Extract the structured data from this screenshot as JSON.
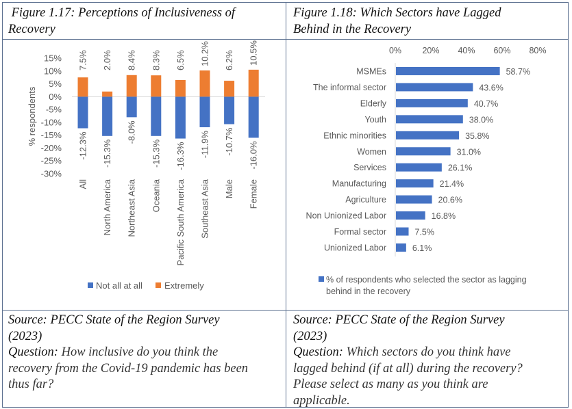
{
  "left_panel": {
    "caption": "Figure 1.17: Perceptions of Inclusiveness of Recovery",
    "caption_line1": " Figure 1.17: Perceptions of Inclusiveness of",
    "caption_line2": "Recovery",
    "source_line1": "Source: PECC State of the Region Survey",
    "source_line2": "(2023)",
    "question_label": "Question:",
    "question_text_line1": " How inclusive do you think the",
    "question_text_line2": "recovery from the Covid-19 pandemic has been",
    "question_text_line3": "thus far?"
  },
  "right_panel": {
    "caption_line1": "Figure 1.18: Which Sectors have Lagged",
    "caption_line2": "Behind in the Recovery",
    "source_line1": "Source: PECC State of the Region Survey",
    "source_line2": "(2023)",
    "question_label": "Question:",
    "question_text_line1": " Which sectors do you think have",
    "question_text_line2": "lagged behind (if at all) during the recovery?",
    "question_text_line3": "Please select as many as you think are",
    "question_text_line4": "applicable."
  },
  "colors": {
    "blue": "#4472c4",
    "orange": "#ed7d31",
    "axis": "#d9d9d9",
    "text": "#595959"
  },
  "chart_data": [
    {
      "type": "bar",
      "orientation": "vertical",
      "title": "Figure 1.17: Perceptions of Inclusiveness of Recovery",
      "xlabel": "",
      "ylabel": "% respondents",
      "categories": [
        "All",
        "North America",
        "Northeast Asia",
        "Oceania",
        "Pacific South America",
        "Southeast Asia",
        "Male",
        "Female"
      ],
      "series": [
        {
          "name": "Not all at all",
          "color": "#4472c4",
          "values": [
            -12.3,
            -15.3,
            -8.0,
            -15.3,
            -16.3,
            -11.9,
            -10.7,
            -16.0
          ],
          "labels": [
            "-12.3%",
            "-15.3%",
            "-8.0%",
            "-15.3%",
            "-16.3%",
            "-11.9%",
            "-10.7%",
            "-16.0%"
          ]
        },
        {
          "name": "Extremely",
          "color": "#ed7d31",
          "values": [
            7.5,
            2.0,
            8.4,
            8.3,
            6.5,
            10.2,
            6.2,
            10.5
          ],
          "labels": [
            "7.5%",
            "2.0%",
            "8.4%",
            "8.3%",
            "6.5%",
            "10.2%",
            "6.2%",
            "10.5%"
          ]
        }
      ],
      "yticks": [
        "15%",
        "10%",
        "5%",
        "0%",
        "-5%",
        "-10%",
        "-15%",
        "-20%",
        "-25%",
        "-30%"
      ],
      "ytick_values": [
        15,
        10,
        5,
        0,
        -5,
        -10,
        -15,
        -20,
        -25,
        -30
      ],
      "ylim": [
        -30,
        15
      ],
      "grid": false,
      "legend": "bottom"
    },
    {
      "type": "bar",
      "orientation": "horizontal",
      "title": "Figure 1.18: Which Sectors have Lagged Behind in the Recovery",
      "xlabel": "",
      "ylabel": "",
      "categories": [
        "MSMEs",
        "The informal sector",
        "Elderly",
        "Youth",
        "Ethnic minorities",
        "Women",
        "Services",
        "Manufacturing",
        "Agriculture",
        "Non Unionized Labor",
        "Formal sector",
        "Unionized Labor"
      ],
      "series": [
        {
          "name": "% of respondents who selected the sector as lagging behind in the recovery",
          "color": "#4472c4",
          "values": [
            58.7,
            43.6,
            40.7,
            38.0,
            35.8,
            31.0,
            26.1,
            21.4,
            20.6,
            16.8,
            7.5,
            6.1
          ],
          "labels": [
            "58.7%",
            "43.6%",
            "40.7%",
            "38.0%",
            "35.8%",
            "31.0%",
            "26.1%",
            "21.4%",
            "20.6%",
            "16.8%",
            "7.5%",
            "6.1%"
          ]
        }
      ],
      "legend_line1": "% of respondents who selected the sector as lagging",
      "legend_line2": "behind in the recovery",
      "xticks": [
        "0%",
        "20%",
        "40%",
        "60%",
        "80%"
      ],
      "xtick_values": [
        0,
        20,
        40,
        60,
        80
      ],
      "xlim": [
        0,
        80
      ],
      "xaxis_position": "top",
      "grid": false,
      "legend": "bottom"
    }
  ]
}
